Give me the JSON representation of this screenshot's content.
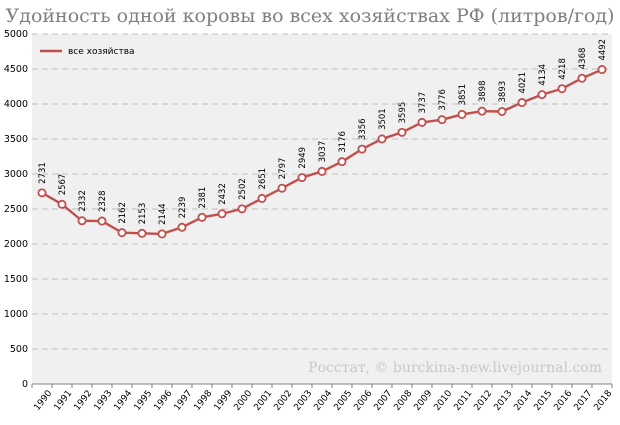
{
  "chart_data": {
    "type": "line",
    "title": "Удойность одной коровы во всех хозяйствах РФ (литров/год)",
    "source": "Росстат, © burckina-new.livejournal.com",
    "x": [
      "1990",
      "1991",
      "1992",
      "1993",
      "1994",
      "1995",
      "1996",
      "1997",
      "1998",
      "1999",
      "2000",
      "2001",
      "2002",
      "2003",
      "2004",
      "2005",
      "2006",
      "2007",
      "2008",
      "2009",
      "2010",
      "2011",
      "2012",
      "2013",
      "2014",
      "2015",
      "2016",
      "2017",
      "2018"
    ],
    "series": [
      {
        "name": "все хозяйства",
        "color": "#c0504d",
        "values": [
          2731,
          2567,
          2332,
          2328,
          2162,
          2153,
          2144,
          2239,
          2381,
          2432,
          2502,
          2651,
          2797,
          2949,
          3037,
          3176,
          3356,
          3501,
          3595,
          3737,
          3776,
          3851,
          3898,
          3893,
          4021,
          4134,
          4218,
          4368,
          4492
        ]
      }
    ],
    "yticks": [
      "0",
      "500",
      "1000",
      "1500",
      "2000",
      "2500",
      "3000",
      "3500",
      "4000",
      "4500",
      "5000"
    ],
    "ylim": [
      0,
      5000
    ],
    "grid": true,
    "legend_position": "top-left",
    "data_labels": true
  }
}
